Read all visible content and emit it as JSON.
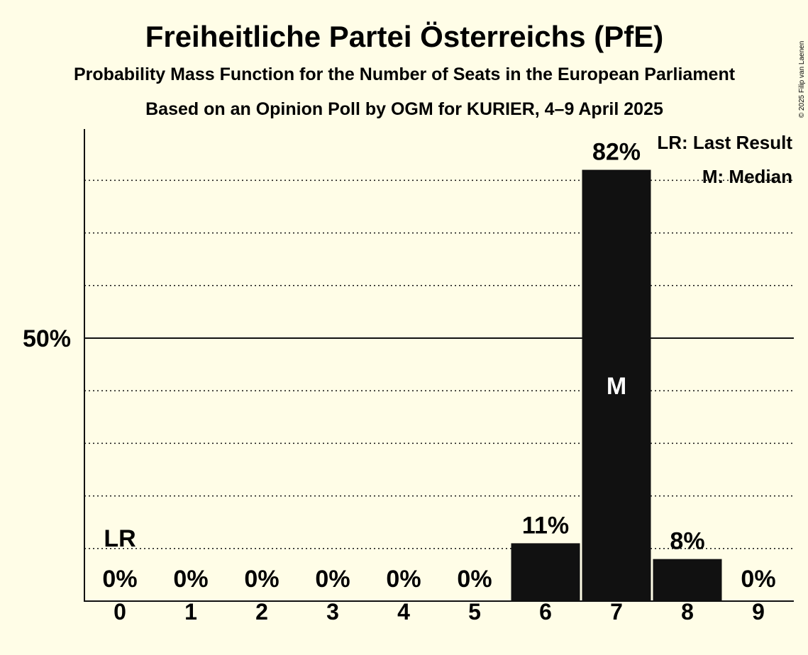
{
  "title": "Freiheitliche Partei Österreichs (PfE)",
  "subtitle": "Probability Mass Function for the Number of Seats in the European Parliament",
  "subtitle2": "Based on an Opinion Poll by OGM for KURIER, 4–9 April 2025",
  "copyright": "© 2025 Filip van Laenen",
  "legend": {
    "last_result": "LR: Last Result",
    "median": "M: Median"
  },
  "colors": {
    "background": "#fffde7",
    "bar": "#111111",
    "text": "#111111",
    "median_text": "#ffffff"
  },
  "chart_data": {
    "type": "bar",
    "categories": [
      "0",
      "1",
      "2",
      "3",
      "4",
      "5",
      "6",
      "7",
      "8",
      "9"
    ],
    "values": [
      0,
      0,
      0,
      0,
      0,
      0,
      11,
      82,
      8,
      0
    ],
    "value_labels": [
      "0%",
      "0%",
      "0%",
      "0%",
      "0%",
      "0%",
      "11%",
      "82%",
      "8%",
      "0%"
    ],
    "y_tick_labels": [
      "50%"
    ],
    "y_ticks": [
      50
    ],
    "ylim": [
      0,
      90
    ],
    "grid": "dotted every 10%",
    "last_result_category": "0",
    "last_result_label": "LR",
    "median_category": "7",
    "median_label": "M",
    "legend_position": "top-right"
  }
}
